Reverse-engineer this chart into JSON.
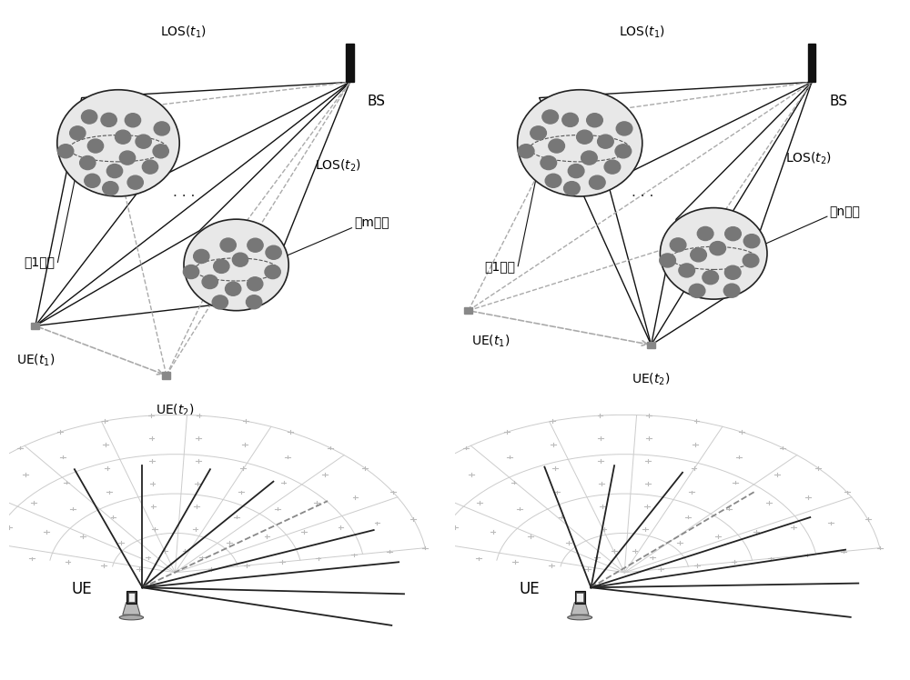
{
  "bg_color": "#ffffff",
  "line_color_solid": "#111111",
  "line_color_dashed": "#aaaaaa",
  "dot_color": "#777777",
  "text_color": "#000000",
  "left_cluster1_label": "第1个簇",
  "left_clusterm_label": "第m个簇",
  "right_cluster1_label": "第1个簇",
  "right_clustern_label": "第n个簇",
  "los_t1_label": "LOS($t_1$)",
  "los_t2_label": "LOS($t_2$)",
  "bs_label": "BS",
  "ue_t1_label": "UE($t_1$)",
  "ue_t2_label": "UE($t_2$)",
  "ue_label": "UE"
}
